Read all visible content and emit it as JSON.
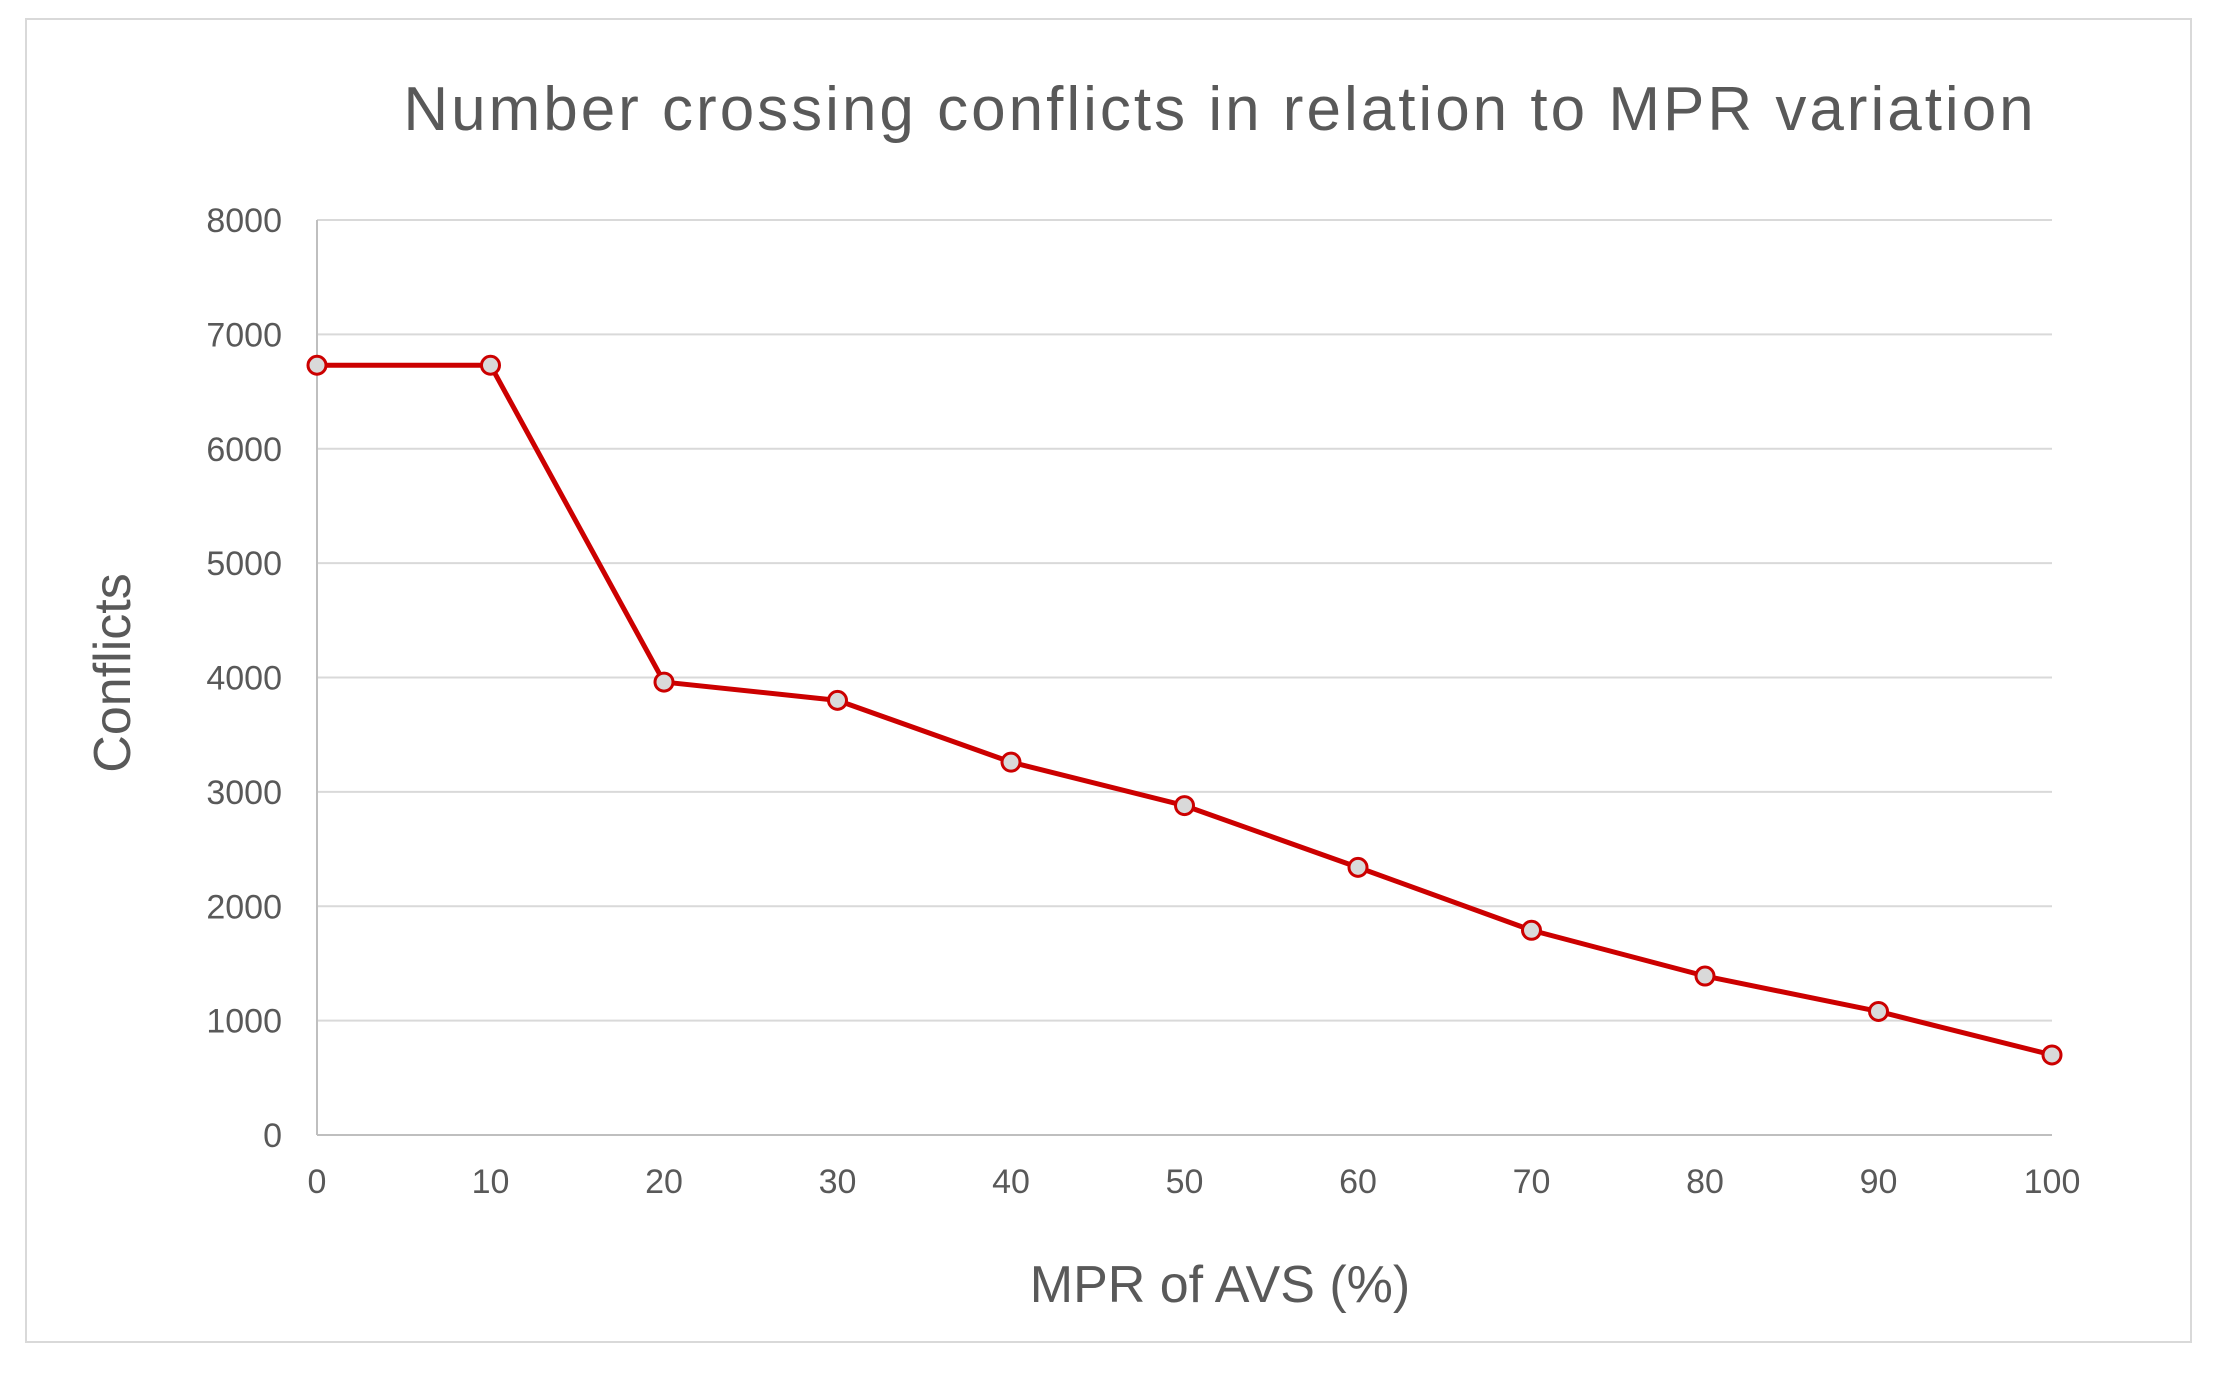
{
  "chart_data": {
    "type": "line",
    "title": "Number crossing conflicts in relation to MPR variation",
    "xlabel": "MPR of AVS (%)",
    "ylabel": "Conflicts",
    "x": [
      0,
      10,
      20,
      30,
      40,
      50,
      60,
      70,
      80,
      90,
      100
    ],
    "x_tick_labels": [
      "0",
      "10",
      "20",
      "30",
      "40",
      "50",
      "60",
      "70",
      "80",
      "90",
      "100"
    ],
    "y_tick_labels": [
      "0",
      "1000",
      "2000",
      "3000",
      "4000",
      "5000",
      "6000",
      "7000",
      "8000"
    ],
    "y_ticks": [
      0,
      1000,
      2000,
      3000,
      4000,
      5000,
      6000,
      7000,
      8000
    ],
    "xlim": [
      0,
      100
    ],
    "ylim": [
      0,
      8000
    ],
    "grid": true,
    "legend": "none",
    "series": [
      {
        "name": "Conflicts",
        "values": [
          6730,
          6730,
          3960,
          3800,
          3260,
          2880,
          2340,
          1790,
          1390,
          1080,
          700
        ],
        "line_color": "#cc0000",
        "marker_fill": "#d9d9d9",
        "marker_stroke": "#cc0000"
      }
    ]
  }
}
